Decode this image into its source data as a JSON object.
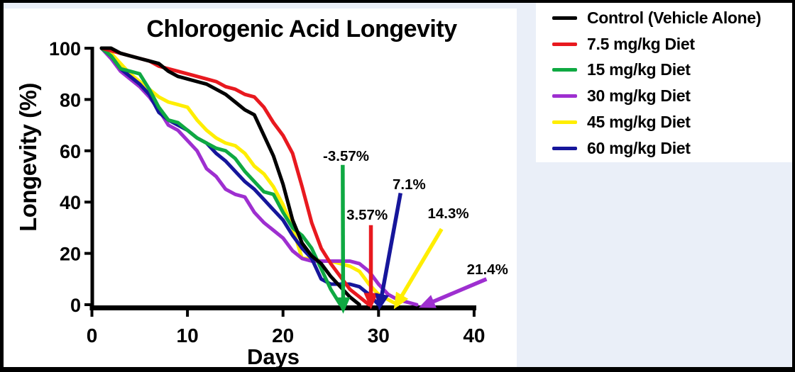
{
  "frame": {
    "background_color": "#eaeff8",
    "border_color": "#000000",
    "panel_color": "#ffffff"
  },
  "chart_data": {
    "type": "line",
    "title": "Chlorogenic Acid Longevity",
    "xlabel": "Days",
    "ylabel": "Longevity (%)",
    "xlim": [
      0,
      40
    ],
    "ylim": [
      0,
      100
    ],
    "xticks": [
      0,
      10,
      20,
      30,
      40
    ],
    "yticks": [
      0,
      20,
      40,
      60,
      80,
      100
    ],
    "grid": false,
    "legend_position": "outside-top-right",
    "series": [
      {
        "name": "45 mg/kg Diet",
        "color": "#ffee00",
        "x": [
          1,
          2,
          3,
          4,
          5,
          6,
          7,
          8,
          9,
          10,
          11,
          12,
          13,
          14,
          15,
          16,
          17,
          18,
          19,
          20,
          21,
          22,
          23,
          24,
          25,
          26,
          27,
          28,
          29,
          30,
          31,
          32
        ],
        "y": [
          100,
          98,
          94,
          90,
          87,
          84,
          81,
          79,
          78,
          77,
          72,
          68,
          65,
          63,
          62,
          59,
          54,
          51,
          46,
          39,
          30,
          18,
          18,
          17,
          17,
          16,
          15,
          13,
          8,
          4,
          2,
          0
        ]
      },
      {
        "name": "30 mg/kg Diet",
        "color": "#9e2fd0",
        "x": [
          1,
          2,
          3,
          4,
          5,
          6,
          7,
          8,
          9,
          10,
          11,
          12,
          13,
          14,
          15,
          16,
          17,
          18,
          19,
          20,
          21,
          22,
          23,
          24,
          25,
          26,
          27,
          28,
          29,
          30,
          31,
          32,
          33,
          34
        ],
        "y": [
          100,
          96,
          91,
          88,
          85,
          81,
          76,
          70,
          68,
          64,
          60,
          53,
          50,
          45,
          43,
          42,
          36,
          32,
          29,
          26,
          21,
          18,
          17,
          17,
          17,
          17,
          17,
          16,
          13,
          8,
          4,
          2,
          1,
          0
        ]
      },
      {
        "name": "60 mg/kg Diet",
        "color": "#16169b",
        "x": [
          1,
          2,
          3,
          4,
          5,
          6,
          7,
          8,
          9,
          10,
          11,
          12,
          13,
          14,
          15,
          16,
          17,
          18,
          19,
          20,
          21,
          22,
          23,
          24,
          25,
          26,
          27,
          28,
          29,
          30
        ],
        "y": [
          100,
          97,
          92,
          89,
          86,
          82,
          75,
          72,
          70,
          68,
          65,
          63,
          59,
          56,
          52,
          48,
          45,
          41,
          37,
          33,
          27,
          22,
          18,
          10,
          8,
          8,
          8,
          7,
          4,
          0
        ]
      },
      {
        "name": "15 mg/kg Diet",
        "color": "#0fa942",
        "x": [
          1,
          2,
          3,
          4,
          5,
          6,
          7,
          8,
          9,
          10,
          11,
          12,
          13,
          14,
          15,
          16,
          17,
          18,
          19,
          20,
          21,
          22,
          23,
          24,
          25,
          26
        ],
        "y": [
          100,
          97,
          92,
          91,
          90,
          84,
          77,
          72,
          71,
          68,
          65,
          63,
          61,
          60,
          57,
          52,
          48,
          44,
          43,
          36,
          30,
          27,
          22,
          14,
          6,
          0
        ]
      },
      {
        "name": "7.5 mg/kg Diet",
        "color": "#e8191f",
        "x": [
          1,
          2,
          3,
          4,
          5,
          6,
          7,
          8,
          9,
          10,
          11,
          12,
          13,
          14,
          15,
          16,
          17,
          18,
          19,
          20,
          21,
          22,
          23,
          24,
          25,
          26,
          27,
          28,
          29
        ],
        "y": [
          100,
          99,
          98,
          97,
          96,
          95,
          93,
          92,
          91,
          90,
          89,
          88,
          87,
          85,
          84,
          82,
          81,
          77,
          71,
          66,
          59,
          46,
          32,
          22,
          16,
          11,
          6,
          3,
          0
        ]
      },
      {
        "name": "Control (Vehicle Alone)",
        "color": "#000000",
        "x": [
          1,
          2,
          3,
          4,
          5,
          6,
          7,
          8,
          9,
          10,
          11,
          12,
          13,
          14,
          15,
          16,
          17,
          18,
          19,
          20,
          21,
          22,
          23,
          24,
          25,
          26,
          27,
          28
        ],
        "y": [
          100,
          100,
          98,
          97,
          96,
          95,
          94,
          91,
          89,
          88,
          87,
          86,
          84,
          82,
          79,
          76,
          74,
          66,
          58,
          47,
          33,
          24,
          19,
          16,
          11,
          7,
          3,
          0
        ]
      }
    ],
    "annotations": [
      {
        "label": "-3.57%",
        "color": "#0fa942",
        "label_day": 26.6,
        "label_pct": 58.3,
        "arrow_from_day": 26.25,
        "arrow_from_pct": 54.5,
        "arrow_to_day": 26.3,
        "arrow_to_pct": -3.5
      },
      {
        "label": "3.57%",
        "color": "#e8191f",
        "label_day": 28.8,
        "label_pct": 35.4,
        "arrow_from_day": 29.2,
        "arrow_from_pct": 31,
        "arrow_to_day": 29.2,
        "arrow_to_pct": -1.8
      },
      {
        "label": "7.1%",
        "color": "#16169b",
        "label_day": 33.2,
        "label_pct": 47.2,
        "arrow_from_day": 32.3,
        "arrow_from_pct": 43.5,
        "arrow_to_day": 30.05,
        "arrow_to_pct": -2.2
      },
      {
        "label": "14.3%",
        "color": "#ffee00",
        "label_day": 37.3,
        "label_pct": 35.9,
        "arrow_from_day": 36.6,
        "arrow_from_pct": 29.5,
        "arrow_to_day": 31.6,
        "arrow_to_pct": -1.8
      },
      {
        "label": "21.4%",
        "color": "#9e2fd0",
        "label_day": 41.4,
        "label_pct": 14.1,
        "arrow_from_day": 41.3,
        "arrow_from_pct": 10,
        "arrow_to_day": 34.2,
        "arrow_to_pct": -1.2
      }
    ]
  },
  "legend": {
    "items": [
      {
        "label": "Control (Vehicle Alone)",
        "color": "#000000"
      },
      {
        "label": "7.5 mg/kg Diet",
        "color": "#e8191f"
      },
      {
        "label": "15 mg/kg Diet",
        "color": "#0fa942"
      },
      {
        "label": "30 mg/kg Diet",
        "color": "#9e2fd0"
      },
      {
        "label": "45 mg/kg Diet",
        "color": "#ffee00"
      },
      {
        "label": "60 mg/kg Diet",
        "color": "#16169b"
      }
    ]
  }
}
